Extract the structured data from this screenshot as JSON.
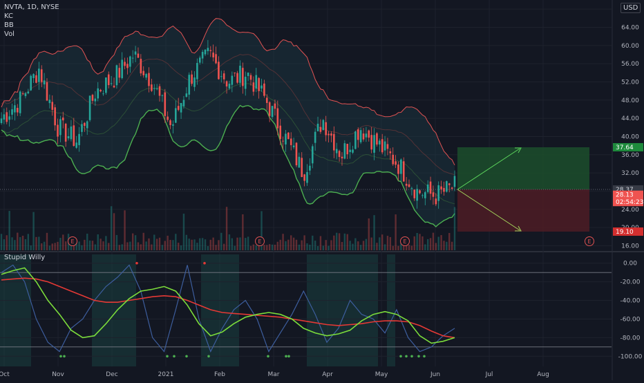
{
  "header": {
    "symbol_line": "NVTA, 1D, NYSE",
    "indicators": [
      "KC",
      "BB",
      "Vol"
    ],
    "currency": "USD"
  },
  "colors": {
    "background": "#131722",
    "grid": "#1e222d",
    "up_candle": "#26a69a",
    "down_candle": "#ef5350",
    "bb_upper": "#e05252",
    "kc_lower": "#4caf50",
    "band_fill": "#1d3a44",
    "profit_zone": "#1c4d2b",
    "loss_zone": "#4d1c24",
    "signal_fast": "#7cdd3b",
    "signal_slow": "#e53935",
    "oscillator": "#3d5e9e"
  },
  "chart_data": [
    {
      "type": "candlestick",
      "title": "NVTA, 1D, NYSE",
      "x_tick_labels": [
        "Oct",
        "Nov",
        "Dec",
        "2021",
        "Feb",
        "Mar",
        "Apr",
        "May",
        "Jun",
        "Jul",
        "Aug"
      ],
      "y_tick_labels": [
        "68.00",
        "64.00",
        "60.00",
        "56.00",
        "52.00",
        "48.00",
        "44.00",
        "40.00",
        "36.00",
        "32.00",
        "28.00",
        "24.00",
        "20.00",
        "16.00"
      ],
      "ylim": [
        15,
        70
      ],
      "price_trend": [
        [
          "Oct",
          44
        ],
        [
          "Oct",
          48
        ],
        [
          "Oct",
          55
        ],
        [
          "Nov",
          42
        ],
        [
          "Nov",
          39
        ],
        [
          "Nov",
          50
        ],
        [
          "Dec",
          53
        ],
        [
          "Dec",
          58
        ],
        [
          "Dec",
          52
        ],
        [
          "2021",
          42
        ],
        [
          "2021",
          53
        ],
        [
          "2021",
          58
        ],
        [
          "Feb",
          52
        ],
        [
          "Feb",
          54
        ],
        [
          "Feb",
          48
        ],
        [
          "Mar",
          40
        ],
        [
          "Mar",
          32
        ],
        [
          "Mar",
          44
        ],
        [
          "Apr",
          36
        ],
        [
          "Apr",
          42
        ],
        [
          "Apr",
          38
        ],
        [
          "May",
          34
        ],
        [
          "May",
          28
        ],
        [
          "May",
          27
        ],
        [
          "Jun",
          29
        ]
      ],
      "earnings_markers": [
        "E",
        "E",
        "E",
        "E"
      ],
      "price_labels": [
        {
          "text": "37.64",
          "role": "take-profit"
        },
        {
          "text": "28.37",
          "role": "marker"
        },
        {
          "text": "28.13",
          "role": "last-price"
        },
        {
          "text": "02:54:23",
          "role": "countdown"
        },
        {
          "text": "19.10",
          "role": "stop-loss"
        }
      ],
      "projection": {
        "entry": 28.37,
        "target": 37.64,
        "stop": 19.1
      }
    },
    {
      "type": "line",
      "title": "Stupid Willy",
      "y_tick_labels": [
        "0.00",
        "-20.00",
        "-40.00",
        "-60.00",
        "-80.00",
        "-100.00"
      ],
      "ylim": [
        -105,
        5
      ],
      "reference_lines": [
        -10,
        -90
      ],
      "series": [
        {
          "values": [
            -12,
            -8,
            -5,
            -20,
            -40,
            -55,
            -72,
            -80,
            -78,
            -65,
            -50,
            -38,
            -30,
            -28,
            -25,
            -30,
            -45,
            -65,
            -78,
            -74,
            -65,
            -58,
            -55,
            -53,
            -55,
            -60,
            -70,
            -75,
            -78,
            -76,
            -72,
            -62,
            -55,
            -52,
            -55,
            -62,
            -78,
            -86,
            -84,
            -80
          ]
        },
        {
          "values": [
            -18,
            -17,
            -16,
            -17,
            -20,
            -25,
            -30,
            -35,
            -40,
            -42,
            -42,
            -40,
            -38,
            -36,
            -35,
            -36,
            -40,
            -45,
            -50,
            -53,
            -54,
            -55,
            -56,
            -57,
            -58,
            -60,
            -62,
            -64,
            -66,
            -67,
            -66,
            -65,
            -63,
            -62,
            -62,
            -63,
            -67,
            -73,
            -78,
            -80
          ]
        },
        {
          "values": [
            -10,
            -2,
            -20,
            -60,
            -85,
            -95,
            -70,
            -60,
            -40,
            -25,
            -15,
            -2,
            -30,
            -80,
            -95,
            -50,
            -2,
            -60,
            -95,
            -70,
            -50,
            -40,
            -60,
            -95,
            -75,
            -55,
            -30,
            -55,
            -85,
            -70,
            -40,
            -55,
            -60,
            -75,
            -50,
            -80,
            -95,
            -90,
            -78,
            -70
          ]
        }
      ]
    }
  ]
}
